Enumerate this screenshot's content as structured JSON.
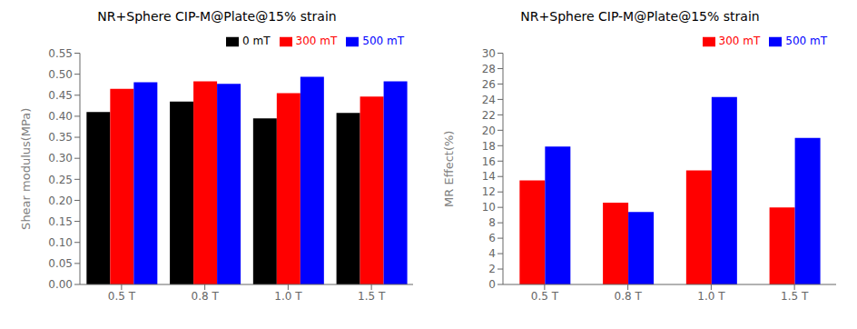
{
  "chart_data": [
    {
      "type": "bar",
      "title": "NR+Sphere CIP-M@Plate@15% strain",
      "ylabel": "Shear modulus(MPa)",
      "categories": [
        "0.5 T",
        "0.8 T",
        "1.0 T",
        "1.5 T"
      ],
      "series": [
        {
          "name": "0 mT",
          "color": "#000000",
          "values": [
            0.41,
            0.435,
            0.395,
            0.408
          ]
        },
        {
          "name": "300 mT",
          "color": "#ff0000",
          "values": [
            0.465,
            0.483,
            0.455,
            0.447
          ]
        },
        {
          "name": "500 mT",
          "color": "#0000ff",
          "values": [
            0.481,
            0.477,
            0.494,
            0.483
          ]
        }
      ],
      "ylim": [
        0.0,
        0.55
      ],
      "yticks": [
        {
          "value": 0.0,
          "label": "0.00"
        },
        {
          "value": 0.05,
          "label": "0.05"
        },
        {
          "value": 0.1,
          "label": "0.10"
        },
        {
          "value": 0.15,
          "label": "0.15"
        },
        {
          "value": 0.2,
          "label": "0.20"
        },
        {
          "value": 0.25,
          "label": "0.25"
        },
        {
          "value": 0.3,
          "label": "0.30"
        },
        {
          "value": 0.35,
          "label": "0.35"
        },
        {
          "value": 0.4,
          "label": "0.40"
        },
        {
          "value": 0.45,
          "label": "0.45"
        },
        {
          "value": 0.5,
          "label": "0.50"
        },
        {
          "value": 0.55,
          "label": "0.55"
        }
      ],
      "grid": false,
      "legend": "upper right"
    },
    {
      "type": "bar",
      "title": "NR+Sphere CIP-M@Plate@15% strain",
      "ylabel": "MR Effect(%)",
      "categories": [
        "0.5 T",
        "0.8 T",
        "1.0 T",
        "1.5 T"
      ],
      "series": [
        {
          "name": "300 mT",
          "color": "#ff0000",
          "values": [
            13.5,
            10.6,
            14.8,
            10.0
          ]
        },
        {
          "name": "500 mT",
          "color": "#0000ff",
          "values": [
            17.9,
            9.4,
            24.3,
            19.0
          ]
        }
      ],
      "ylim": [
        0,
        30
      ],
      "yticks": [
        0,
        2,
        4,
        6,
        8,
        10,
        12,
        14,
        16,
        18,
        20,
        22,
        24,
        26,
        28,
        30
      ],
      "grid": false,
      "legend": "upper right"
    }
  ]
}
